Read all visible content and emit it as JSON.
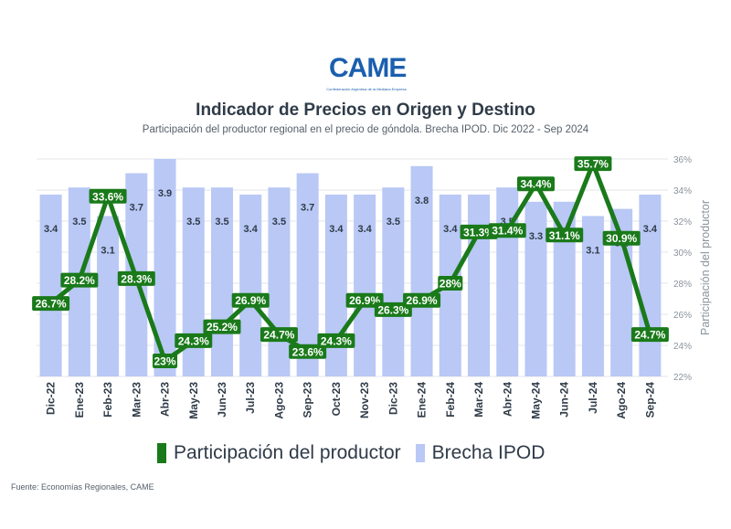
{
  "header": {
    "logo_text": "CAME",
    "logo_subtext": "Confederación Argentina de la Mediana Empresa",
    "title": "Indicador de Precios en Origen y Destino",
    "subtitle": "Participación del productor regional en el precio de góndola. Brecha IPOD. Dic 2022 - Sep 2024"
  },
  "colors": {
    "bar": "#b9c8f5",
    "line": "#1a7a1a",
    "label_bg": "#1a7a1a",
    "text": "#2f3b48"
  },
  "chart_data": {
    "type": "bar+line",
    "categories": [
      "Dic-22",
      "Ene-23",
      "Feb-23",
      "Mar-23",
      "Abr-23",
      "May-23",
      "Jun-23",
      "Jul-23",
      "Ago-23",
      "Sep-23",
      "Oct-23",
      "Nov-23",
      "Dic-23",
      "Ene-24",
      "Feb-24",
      "Mar-24",
      "Abr-24",
      "May-24",
      "Jun-24",
      "Jul-24",
      "Ago-24",
      "Sep-24"
    ],
    "series": [
      {
        "name": "Brecha IPOD",
        "type": "bar",
        "values": [
          3.4,
          3.5,
          3.1,
          3.7,
          3.9,
          3.5,
          3.5,
          3.4,
          3.5,
          3.7,
          3.4,
          3.4,
          3.5,
          3.8,
          3.4,
          3.4,
          3.5,
          3.3,
          3.3,
          3.1,
          3.2,
          3.4
        ],
        "labels": [
          "3.4",
          "3.5",
          "3.1",
          "3.7",
          "3.9",
          "3.5",
          "3.5",
          "3.4",
          "3.5",
          "3.7",
          "3.4",
          "3.4",
          "3.5",
          "3.8",
          "3.4",
          "3.4",
          "3.5",
          "3.3",
          "3.3",
          "3.1",
          "3.2",
          "3.4"
        ]
      },
      {
        "name": "Participación del productor",
        "type": "line",
        "axis": "right",
        "values": [
          26.7,
          28.2,
          33.6,
          28.3,
          23.0,
          24.3,
          25.2,
          26.9,
          24.7,
          23.6,
          24.3,
          26.9,
          26.3,
          26.9,
          28.0,
          31.3,
          31.4,
          34.4,
          31.1,
          35.7,
          30.9,
          24.7
        ],
        "labels": [
          "26.7%",
          "28.2%",
          "33.6%",
          "28.3%",
          "23%",
          "24.3%",
          "25.2%",
          "26.9%",
          "24.7%",
          "23.6%",
          "24.3%",
          "26.9%",
          "26.3%",
          "26.9%",
          "28%",
          "31.3%",
          "31.4%",
          "34.4%",
          "31.1%",
          "35.7%",
          "30.9%",
          "24.7%"
        ]
      }
    ],
    "y_right": {
      "label": "Participación del productor",
      "range": [
        22,
        36
      ],
      "ticks": [
        "22%",
        "24%",
        "26%",
        "28%",
        "30%",
        "32%",
        "34%",
        "36%"
      ]
    },
    "grid": true,
    "legend": "bottom"
  },
  "legend": {
    "line_label": "Participación del productor",
    "bar_label": "Brecha IPOD"
  },
  "source": "Fuente: Economías Regionales, CAME"
}
